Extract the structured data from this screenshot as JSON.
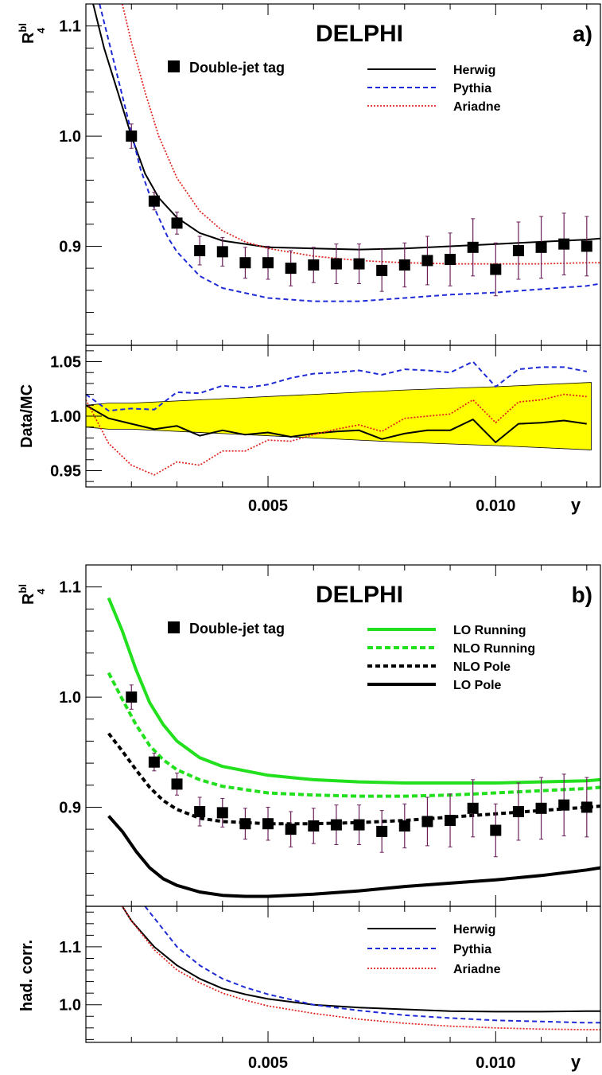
{
  "panel_a": {
    "experiment": "DELPHI",
    "panel_label": "a)",
    "ylabel_main": "R",
    "ylabel_sup": "bl",
    "ylabel_sub": "4",
    "ratio_ylabel": "Data/MC",
    "xlabel": "y",
    "data_legend": "Double-jet tag",
    "legend": [
      {
        "label": "Herwig",
        "color": "#000000",
        "dash": "solid"
      },
      {
        "label": "Pythia",
        "color": "#1f2bd6",
        "dash": "dashed"
      },
      {
        "label": "Ariadne",
        "color": "#e0201c",
        "dash": "dotted"
      }
    ],
    "main_y_ticks": [
      "1.1",
      "1.0",
      "0.9"
    ],
    "ratio_y_ticks": [
      "1.05",
      "1.00",
      "0.95"
    ],
    "x_ticks": [
      "0.005",
      "0.010"
    ]
  },
  "panel_b": {
    "experiment": "DELPHI",
    "panel_label": "b)",
    "ylabel_main": "R",
    "ylabel_sup": "bl",
    "ylabel_sub": "4",
    "lower_ylabel": "had. corr.",
    "xlabel": "y",
    "data_legend": "Double-jet tag",
    "legend": [
      {
        "label": "LO Running",
        "color": "#22e01e",
        "dash": "solid"
      },
      {
        "label": "NLO Running",
        "color": "#22e01e",
        "dash": "dashed"
      },
      {
        "label": "NLO Pole",
        "color": "#000000",
        "dash": "dashed"
      },
      {
        "label": "LO Pole",
        "color": "#000000",
        "dash": "solid"
      }
    ],
    "legend_lower": [
      {
        "label": "Herwig",
        "color": "#000000",
        "dash": "solid"
      },
      {
        "label": "Pythia",
        "color": "#1f2bd6",
        "dash": "dashed"
      },
      {
        "label": "Ariadne",
        "color": "#e0201c",
        "dash": "dotted"
      }
    ],
    "main_y_ticks": [
      "1.1",
      "1.0",
      "0.9"
    ],
    "lower_y_ticks": [
      "1.1",
      "1.0"
    ],
    "x_ticks": [
      "0.005",
      "0.010"
    ]
  },
  "chart_data": [
    {
      "type": "scatter",
      "panel": "a-main",
      "xlim": [
        0.001,
        0.0123
      ],
      "ylim": [
        0.81,
        1.12
      ],
      "data": {
        "name": "Double-jet tag",
        "x": [
          0.002,
          0.0025,
          0.003,
          0.0035,
          0.004,
          0.0045,
          0.005,
          0.0055,
          0.006,
          0.0065,
          0.007,
          0.0075,
          0.008,
          0.0085,
          0.009,
          0.0095,
          0.01,
          0.0105,
          0.011,
          0.0115,
          0.012
        ],
        "y": [
          1.0,
          0.941,
          0.921,
          0.896,
          0.895,
          0.885,
          0.885,
          0.88,
          0.883,
          0.884,
          0.884,
          0.878,
          0.883,
          0.887,
          0.888,
          0.899,
          0.879,
          0.896,
          0.899,
          0.902,
          0.9
        ],
        "err": [
          0.011,
          0.008,
          0.01,
          0.013,
          0.013,
          0.014,
          0.015,
          0.016,
          0.016,
          0.018,
          0.018,
          0.019,
          0.02,
          0.022,
          0.024,
          0.026,
          0.024,
          0.026,
          0.028,
          0.028,
          0.027
        ]
      },
      "series": [
        {
          "name": "Herwig",
          "x": [
            0.0011,
            0.0014,
            0.0017,
            0.002,
            0.0023,
            0.0026,
            0.003,
            0.0035,
            0.004,
            0.005,
            0.006,
            0.007,
            0.008,
            0.009,
            0.01,
            0.011,
            0.012,
            0.0123
          ],
          "y": [
            1.13,
            1.08,
            1.04,
            1.0,
            0.966,
            0.944,
            0.926,
            0.912,
            0.905,
            0.899,
            0.898,
            0.897,
            0.898,
            0.9,
            0.902,
            0.904,
            0.906,
            0.907
          ]
        },
        {
          "name": "Pythia",
          "x": [
            0.0013,
            0.0016,
            0.0019,
            0.0022,
            0.0025,
            0.0028,
            0.003,
            0.0035,
            0.004,
            0.005,
            0.006,
            0.007,
            0.008,
            0.009,
            0.01,
            0.011,
            0.012,
            0.0123
          ],
          "y": [
            1.12,
            1.07,
            1.02,
            0.97,
            0.935,
            0.908,
            0.895,
            0.873,
            0.862,
            0.853,
            0.85,
            0.85,
            0.853,
            0.856,
            0.858,
            0.861,
            0.864,
            0.866
          ]
        },
        {
          "name": "Ariadne",
          "x": [
            0.0018,
            0.002,
            0.0023,
            0.0026,
            0.003,
            0.0035,
            0.004,
            0.0045,
            0.005,
            0.006,
            0.007,
            0.008,
            0.009,
            0.01,
            0.011,
            0.012,
            0.0123
          ],
          "y": [
            1.12,
            1.085,
            1.04,
            1.0,
            0.962,
            0.932,
            0.914,
            0.904,
            0.898,
            0.891,
            0.887,
            0.885,
            0.884,
            0.884,
            0.884,
            0.885,
            0.885
          ]
        }
      ]
    },
    {
      "type": "line",
      "panel": "a-ratio",
      "xlim": [
        0.001,
        0.0123
      ],
      "ylim": [
        0.935,
        1.065
      ],
      "band": {
        "name": "uncertainty",
        "x": [
          0.001,
          0.0015,
          0.002,
          0.004,
          0.006,
          0.008,
          0.01,
          0.0121
        ],
        "upper": [
          1.01,
          1.012,
          1.012,
          1.016,
          1.02,
          1.024,
          1.027,
          1.031
        ],
        "lower": [
          0.99,
          0.988,
          0.988,
          0.984,
          0.98,
          0.976,
          0.973,
          0.969
        ]
      },
      "series": [
        {
          "name": "Herwig",
          "x": [
            0.001,
            0.0015,
            0.002,
            0.0025,
            0.003,
            0.0035,
            0.004,
            0.0045,
            0.005,
            0.0055,
            0.006,
            0.0065,
            0.007,
            0.0075,
            0.008,
            0.0085,
            0.009,
            0.0095,
            0.01,
            0.0105,
            0.011,
            0.0115,
            0.012
          ],
          "y": [
            1.01,
            0.998,
            0.993,
            0.988,
            0.991,
            0.982,
            0.987,
            0.983,
            0.985,
            0.981,
            0.984,
            0.986,
            0.987,
            0.979,
            0.984,
            0.987,
            0.987,
            0.997,
            0.976,
            0.993,
            0.994,
            0.996,
            0.993
          ]
        },
        {
          "name": "Pythia",
          "x": [
            0.001,
            0.0015,
            0.002,
            0.0025,
            0.003,
            0.0035,
            0.004,
            0.0045,
            0.005,
            0.0055,
            0.006,
            0.0065,
            0.007,
            0.0075,
            0.008,
            0.0085,
            0.009,
            0.0095,
            0.01,
            0.0105,
            0.011,
            0.0115,
            0.012
          ],
          "y": [
            1.02,
            1.005,
            1.007,
            1.006,
            1.022,
            1.021,
            1.028,
            1.026,
            1.029,
            1.035,
            1.039,
            1.04,
            1.042,
            1.038,
            1.043,
            1.042,
            1.04,
            1.05,
            1.027,
            1.043,
            1.045,
            1.045,
            1.041
          ]
        },
        {
          "name": "Ariadne",
          "x": [
            0.001,
            0.0015,
            0.002,
            0.0025,
            0.003,
            0.0035,
            0.004,
            0.0045,
            0.005,
            0.0055,
            0.006,
            0.0065,
            0.007,
            0.0075,
            0.008,
            0.0085,
            0.009,
            0.0095,
            0.01,
            0.0105,
            0.011,
            0.0115,
            0.012
          ],
          "y": [
            1.015,
            0.975,
            0.955,
            0.946,
            0.958,
            0.955,
            0.968,
            0.968,
            0.978,
            0.977,
            0.983,
            0.988,
            0.992,
            0.986,
            0.998,
            1.0,
            1.002,
            1.015,
            0.994,
            1.013,
            1.015,
            1.02,
            1.018
          ]
        }
      ]
    },
    {
      "type": "scatter",
      "panel": "b-main",
      "xlim": [
        0.001,
        0.0123
      ],
      "ylim": [
        0.81,
        1.12
      ],
      "data": {
        "name": "Double-jet tag",
        "x": [
          0.002,
          0.0025,
          0.003,
          0.0035,
          0.004,
          0.0045,
          0.005,
          0.0055,
          0.006,
          0.0065,
          0.007,
          0.0075,
          0.008,
          0.0085,
          0.009,
          0.0095,
          0.01,
          0.0105,
          0.011,
          0.0115,
          0.012
        ],
        "y": [
          1.0,
          0.941,
          0.921,
          0.896,
          0.895,
          0.885,
          0.885,
          0.88,
          0.883,
          0.884,
          0.884,
          0.878,
          0.883,
          0.887,
          0.888,
          0.899,
          0.879,
          0.896,
          0.899,
          0.902,
          0.9
        ],
        "err": [
          0.011,
          0.008,
          0.01,
          0.013,
          0.013,
          0.014,
          0.015,
          0.016,
          0.016,
          0.018,
          0.018,
          0.019,
          0.02,
          0.022,
          0.024,
          0.026,
          0.024,
          0.026,
          0.028,
          0.028,
          0.027
        ]
      },
      "series": [
        {
          "name": "LO Running",
          "x": [
            0.0015,
            0.0018,
            0.0021,
            0.0024,
            0.0027,
            0.003,
            0.0035,
            0.004,
            0.005,
            0.006,
            0.007,
            0.008,
            0.009,
            0.01,
            0.011,
            0.012,
            0.0123
          ],
          "y": [
            1.09,
            1.06,
            1.025,
            0.995,
            0.975,
            0.96,
            0.945,
            0.937,
            0.929,
            0.925,
            0.923,
            0.922,
            0.922,
            0.922,
            0.923,
            0.924,
            0.925
          ]
        },
        {
          "name": "NLO Running",
          "x": [
            0.0015,
            0.0018,
            0.0021,
            0.0024,
            0.0027,
            0.003,
            0.0035,
            0.004,
            0.005,
            0.006,
            0.007,
            0.008,
            0.009,
            0.01,
            0.011,
            0.012,
            0.0123
          ],
          "y": [
            1.022,
            0.998,
            0.975,
            0.956,
            0.943,
            0.934,
            0.925,
            0.919,
            0.913,
            0.911,
            0.91,
            0.91,
            0.911,
            0.913,
            0.915,
            0.917,
            0.918
          ]
        },
        {
          "name": "NLO Pole",
          "x": [
            0.0015,
            0.0018,
            0.0021,
            0.0024,
            0.0027,
            0.003,
            0.0035,
            0.004,
            0.005,
            0.006,
            0.007,
            0.008,
            0.009,
            0.01,
            0.011,
            0.012,
            0.0123
          ],
          "y": [
            0.967,
            0.951,
            0.934,
            0.918,
            0.906,
            0.898,
            0.89,
            0.887,
            0.885,
            0.885,
            0.886,
            0.888,
            0.891,
            0.894,
            0.897,
            0.9,
            0.901
          ]
        },
        {
          "name": "LO Pole",
          "x": [
            0.0015,
            0.0018,
            0.0021,
            0.0024,
            0.0027,
            0.003,
            0.0035,
            0.004,
            0.0045,
            0.005,
            0.006,
            0.007,
            0.008,
            0.009,
            0.01,
            0.011,
            0.012,
            0.0123
          ],
          "y": [
            0.892,
            0.878,
            0.86,
            0.845,
            0.835,
            0.829,
            0.823,
            0.82,
            0.819,
            0.819,
            0.821,
            0.824,
            0.828,
            0.831,
            0.834,
            0.838,
            0.843,
            0.845
          ]
        }
      ]
    },
    {
      "type": "line",
      "panel": "b-lower",
      "xlim": [
        0.001,
        0.0123
      ],
      "ylim": [
        0.935,
        1.17
      ],
      "series": [
        {
          "name": "Herwig",
          "x": [
            0.0018,
            0.002,
            0.0025,
            0.003,
            0.0035,
            0.004,
            0.0045,
            0.005,
            0.006,
            0.007,
            0.008,
            0.009,
            0.01,
            0.011,
            0.012,
            0.0123
          ],
          "y": [
            1.17,
            1.145,
            1.1,
            1.068,
            1.045,
            1.028,
            1.018,
            1.01,
            1.0,
            0.995,
            0.992,
            0.989,
            0.988,
            0.988,
            0.989,
            0.989
          ]
        },
        {
          "name": "Pythia",
          "x": [
            0.0023,
            0.0025,
            0.003,
            0.0035,
            0.004,
            0.0045,
            0.005,
            0.006,
            0.007,
            0.008,
            0.009,
            0.01,
            0.011,
            0.012,
            0.0123
          ],
          "y": [
            1.17,
            1.15,
            1.1,
            1.068,
            1.045,
            1.03,
            1.018,
            1.0,
            0.99,
            0.982,
            0.977,
            0.973,
            0.971,
            0.969,
            0.969
          ]
        },
        {
          "name": "Ariadne",
          "x": [
            0.0018,
            0.002,
            0.0025,
            0.003,
            0.0035,
            0.004,
            0.0045,
            0.005,
            0.006,
            0.007,
            0.008,
            0.009,
            0.01,
            0.011,
            0.012,
            0.0123
          ],
          "y": [
            1.17,
            1.145,
            1.095,
            1.06,
            1.038,
            1.02,
            1.008,
            0.998,
            0.985,
            0.975,
            0.968,
            0.963,
            0.96,
            0.958,
            0.957,
            0.957
          ]
        }
      ]
    }
  ]
}
